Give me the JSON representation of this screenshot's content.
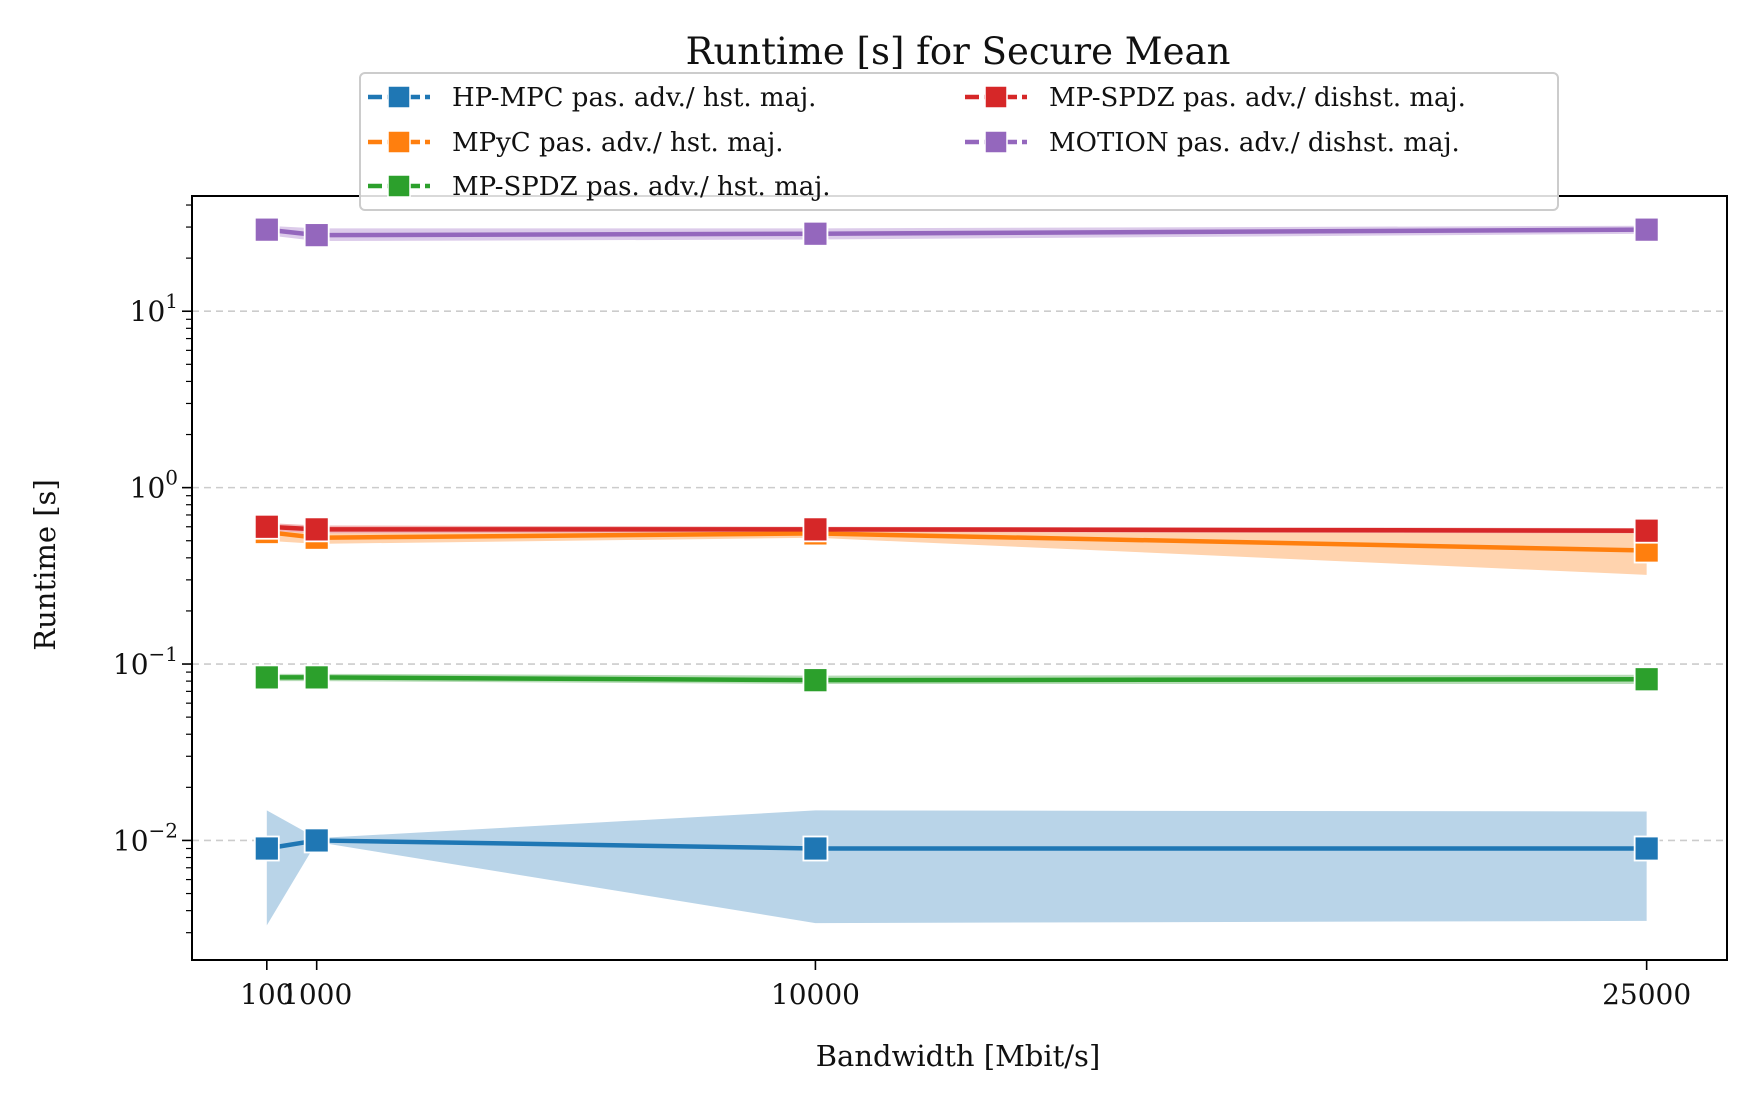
{
  "chart_data": {
    "type": "line",
    "title": "Runtime [s] for Secure Mean",
    "xlabel": "Bandwidth [Mbit/s]",
    "ylabel": "Runtime [s]",
    "yscale": "log",
    "ylim": [
      0.0021,
      45
    ],
    "xlim": [
      -1250,
      26450
    ],
    "xticks": [
      100,
      1000,
      10000,
      25000
    ],
    "xtick_labels": [
      "100",
      "1000",
      "10000",
      "25000"
    ],
    "yticks": [
      0.01,
      0.1,
      1,
      10
    ],
    "ytick_labels": [
      {
        "base": "10",
        "exp": "−2"
      },
      {
        "base": "10",
        "exp": "−1"
      },
      {
        "base": "10",
        "exp": "0"
      },
      {
        "base": "10",
        "exp": "1"
      }
    ],
    "grid": "y-dashed",
    "legend_position": "top-center",
    "x": [
      100,
      1000,
      10000,
      25000
    ],
    "series": [
      {
        "name": "HP-MPC pas. adv./ hst. maj.",
        "color": "#1f77b4",
        "band_color": "#b9d4e8",
        "values": [
          0.009,
          0.01,
          0.009,
          0.009
        ],
        "lower": [
          0.0033,
          0.0098,
          0.0034,
          0.0035
        ],
        "upper": [
          0.0148,
          0.0103,
          0.0148,
          0.0146
        ]
      },
      {
        "name": "MPyC pas. adv./ hst. maj.",
        "color": "#ff7f0e",
        "band_color": "#ffd3ae",
        "values": [
          0.56,
          0.52,
          0.55,
          0.44
        ],
        "lower": [
          0.5,
          0.48,
          0.52,
          0.32
        ],
        "upper": [
          0.6,
          0.56,
          0.58,
          0.56
        ]
      },
      {
        "name": "MP-SPDZ pas. adv./ hst. maj.",
        "color": "#2ca02c",
        "band_color": "#b6dcb6",
        "values": [
          0.084,
          0.084,
          0.081,
          0.082
        ],
        "lower": [
          0.08,
          0.08,
          0.077,
          0.077
        ],
        "upper": [
          0.088,
          0.088,
          0.086,
          0.087
        ]
      },
      {
        "name": "MP-SPDZ pas. adv./ dishst. maj.",
        "color": "#d62728",
        "band_color": "#f2b4b4",
        "values": [
          0.6,
          0.58,
          0.58,
          0.57
        ],
        "lower": [
          0.57,
          0.55,
          0.56,
          0.55
        ],
        "upper": [
          0.63,
          0.61,
          0.6,
          0.59
        ]
      },
      {
        "name": "MOTION pas. adv./ dishst. maj.",
        "color": "#9467bd",
        "band_color": "#dccbea",
        "values": [
          29,
          27,
          27.5,
          29
        ],
        "lower": [
          27,
          25,
          25.5,
          27.5
        ],
        "upper": [
          30.5,
          29.5,
          29.5,
          30.5
        ]
      }
    ]
  }
}
